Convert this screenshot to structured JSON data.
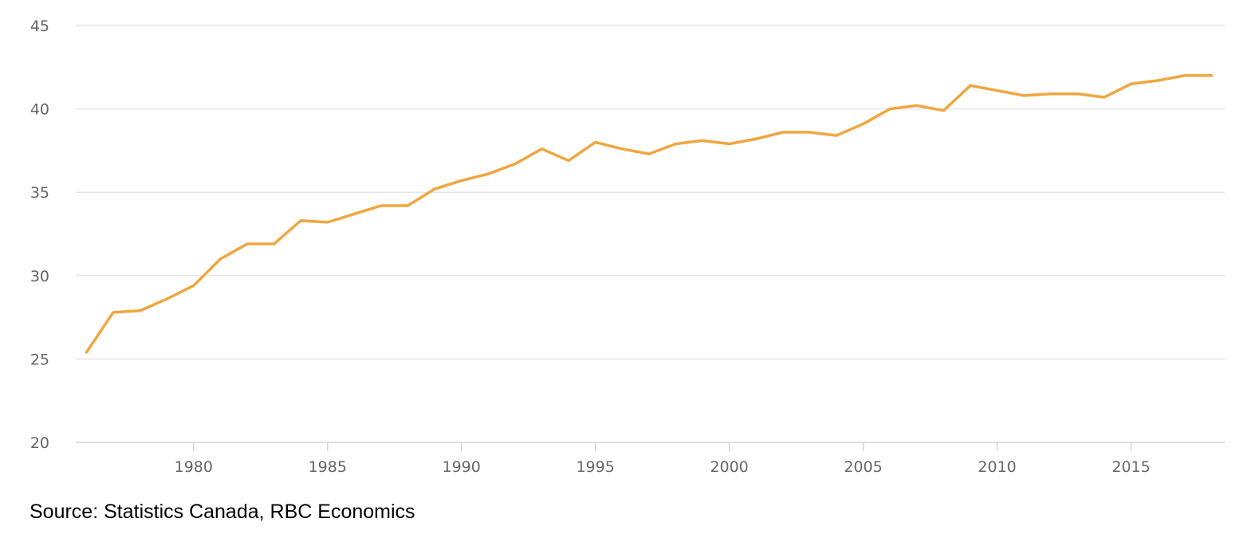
{
  "source": "Source: Statistics Canada, RBC Economics",
  "colors": {
    "series": "#f0a63f",
    "grid": "#e6e6e6",
    "axis": "#ccd6eb",
    "tick_text": "#666666"
  },
  "chart_data": {
    "type": "line",
    "title": "",
    "xlabel": "",
    "ylabel": "",
    "xlim": [
      1975.6,
      2018.5
    ],
    "ylim": [
      20,
      45
    ],
    "yticks": [
      20,
      25,
      30,
      35,
      40,
      45
    ],
    "xticks": [
      1980,
      1985,
      1990,
      1995,
      2000,
      2005,
      2010,
      2015
    ],
    "grid": true,
    "legend": "none",
    "series": [
      {
        "x": [
          1976,
          1977,
          1978,
          1979,
          1980,
          1981,
          1982,
          1983,
          1984,
          1985,
          1986,
          1987,
          1988,
          1989,
          1990,
          1991,
          1992,
          1993,
          1994,
          1995,
          1996,
          1997,
          1998,
          1999,
          2000,
          2001,
          2002,
          2003,
          2004,
          2005,
          2006,
          2007,
          2008,
          2009,
          2010,
          2011,
          2012,
          2013,
          2014,
          2015,
          2016,
          2017,
          2018
        ],
        "values": [
          25.4,
          27.8,
          27.9,
          28.6,
          29.4,
          31.0,
          31.9,
          31.9,
          33.3,
          33.2,
          33.7,
          34.2,
          34.2,
          35.2,
          35.7,
          36.1,
          36.7,
          37.6,
          36.9,
          38.0,
          37.6,
          37.3,
          37.9,
          38.1,
          37.9,
          38.2,
          38.6,
          38.6,
          38.4,
          39.1,
          40.0,
          40.2,
          39.9,
          41.4,
          41.1,
          40.8,
          40.9,
          40.9,
          40.7,
          41.5,
          41.7,
          42.0,
          42.0
        ]
      }
    ]
  }
}
